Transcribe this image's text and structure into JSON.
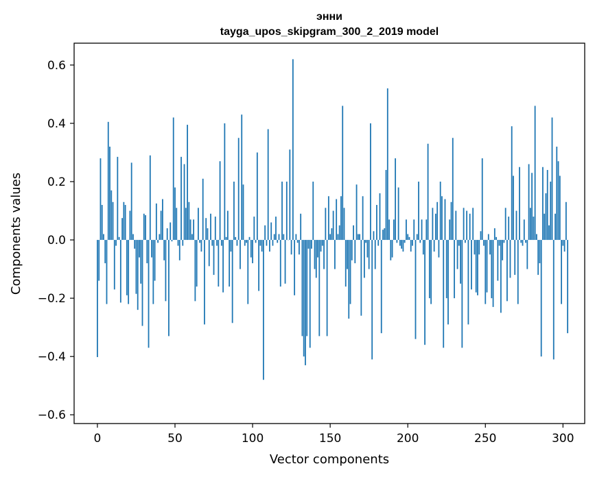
{
  "chart_data": {
    "type": "bar",
    "title": "энни",
    "subtitle": "tayga_upos_skipgram_300_2_2019 model",
    "xlabel": "Vector components",
    "ylabel": "Components values",
    "xlim": [
      -15,
      314
    ],
    "ylim": [
      -0.63,
      0.675
    ],
    "xticks": [
      0,
      50,
      100,
      150,
      200,
      250,
      300
    ],
    "yticks": [
      -0.6,
      -0.4,
      -0.2,
      0.0,
      0.2,
      0.4,
      0.6
    ],
    "ytick_labels": [
      "−0.6",
      "−0.4",
      "−0.2",
      "0.0",
      "0.2",
      "0.4",
      "0.6"
    ],
    "grid": false,
    "bar_color": "#1f77b4",
    "series": [
      {
        "values": [
          -0.402,
          -0.14,
          0.28,
          0.12,
          0.02,
          -0.08,
          -0.22,
          0.405,
          0.32,
          0.17,
          0.13,
          -0.17,
          -0.02,
          0.285,
          0.01,
          -0.215,
          0.075,
          0.13,
          0.12,
          -0.19,
          -0.22,
          0.1,
          0.265,
          0.02,
          -0.03,
          -0.185,
          -0.24,
          -0.06,
          -0.15,
          -0.295,
          0.09,
          0.085,
          -0.08,
          -0.37,
          0.29,
          -0.06,
          -0.22,
          -0.14,
          0.125,
          -0.01,
          0.02,
          0.1,
          0.14,
          -0.07,
          -0.21,
          0.04,
          -0.33,
          0.06,
          -0.005,
          0.42,
          0.18,
          0.11,
          -0.02,
          -0.07,
          0.285,
          -0.02,
          0.26,
          0.11,
          0.395,
          0.13,
          0.07,
          0.02,
          0.07,
          -0.21,
          -0.16,
          0.11,
          -0.01,
          -0.04,
          0.21,
          -0.29,
          0.075,
          0.04,
          -0.09,
          0.09,
          -0.02,
          -0.12,
          0.08,
          -0.02,
          -0.16,
          0.27,
          -0.02,
          -0.18,
          0.4,
          0.01,
          0.1,
          -0.16,
          -0.04,
          -0.285,
          0.2,
          0.01,
          -0.02,
          0.35,
          -0.1,
          0.43,
          0.19,
          -0.02,
          -0.01,
          -0.22,
          0.01,
          -0.06,
          -0.08,
          0.08,
          -0.01,
          0.3,
          -0.175,
          -0.02,
          -0.04,
          -0.48,
          0.05,
          -0.02,
          0.38,
          -0.04,
          0.06,
          -0.02,
          0.02,
          0.08,
          -0.01,
          0.02,
          -0.16,
          0.2,
          0.02,
          -0.15,
          0.2,
          0.0,
          0.31,
          -0.05,
          0.62,
          -0.19,
          0.02,
          -0.01,
          -0.05,
          0.09,
          -0.33,
          -0.4,
          -0.43,
          -0.33,
          -0.03,
          -0.37,
          -0.03,
          0.2,
          -0.1,
          -0.13,
          -0.06,
          -0.33,
          -0.04,
          -0.02,
          -0.1,
          0.11,
          -0.33,
          0.15,
          0.02,
          0.04,
          0.1,
          -0.1,
          0.14,
          0.02,
          0.05,
          0.15,
          0.46,
          0.11,
          -0.16,
          -0.1,
          -0.27,
          -0.22,
          -0.07,
          0.05,
          -0.08,
          0.19,
          0.02,
          0.02,
          -0.26,
          0.15,
          -0.13,
          -0.01,
          -0.06,
          -0.1,
          0.4,
          -0.41,
          0.03,
          -0.1,
          0.12,
          -0.02,
          0.16,
          -0.32,
          0.035,
          0.04,
          0.24,
          0.52,
          0.07,
          -0.07,
          -0.06,
          0.07,
          0.28,
          -0.01,
          0.18,
          -0.02,
          -0.03,
          -0.04,
          -0.01,
          0.07,
          0.02,
          0.01,
          -0.04,
          -0.02,
          0.07,
          -0.34,
          0.02,
          0.2,
          -0.01,
          0.07,
          -0.05,
          -0.36,
          0.07,
          0.33,
          -0.2,
          -0.22,
          0.11,
          -0.04,
          0.09,
          0.13,
          -0.06,
          0.2,
          0.15,
          -0.37,
          0.14,
          -0.2,
          -0.29,
          0.07,
          0.13,
          0.35,
          -0.2,
          0.1,
          -0.1,
          -0.02,
          -0.15,
          -0.37,
          0.11,
          -0.01,
          0.1,
          -0.29,
          0.09,
          -0.17,
          0.11,
          -0.05,
          -0.18,
          -0.19,
          -0.05,
          0.03,
          0.28,
          -0.02,
          -0.22,
          -0.18,
          0.02,
          -0.05,
          -0.2,
          -0.23,
          0.04,
          0.01,
          -0.14,
          -0.02,
          -0.25,
          -0.07,
          -0.01,
          0.11,
          -0.21,
          0.08,
          -0.13,
          0.39,
          0.22,
          -0.12,
          0.1,
          -0.22,
          0.25,
          -0.01,
          -0.02,
          0.07,
          -0.01,
          -0.1,
          0.26,
          0.11,
          0.23,
          0.08,
          0.46,
          0.02,
          -0.12,
          -0.08,
          -0.4,
          0.25,
          0.09,
          0.16,
          0.24,
          0.05,
          0.2,
          0.42,
          -0.41,
          0.09,
          0.32,
          0.27,
          0.22,
          -0.22,
          -0.02,
          -0.04,
          0.13,
          -0.32
        ]
      }
    ]
  }
}
